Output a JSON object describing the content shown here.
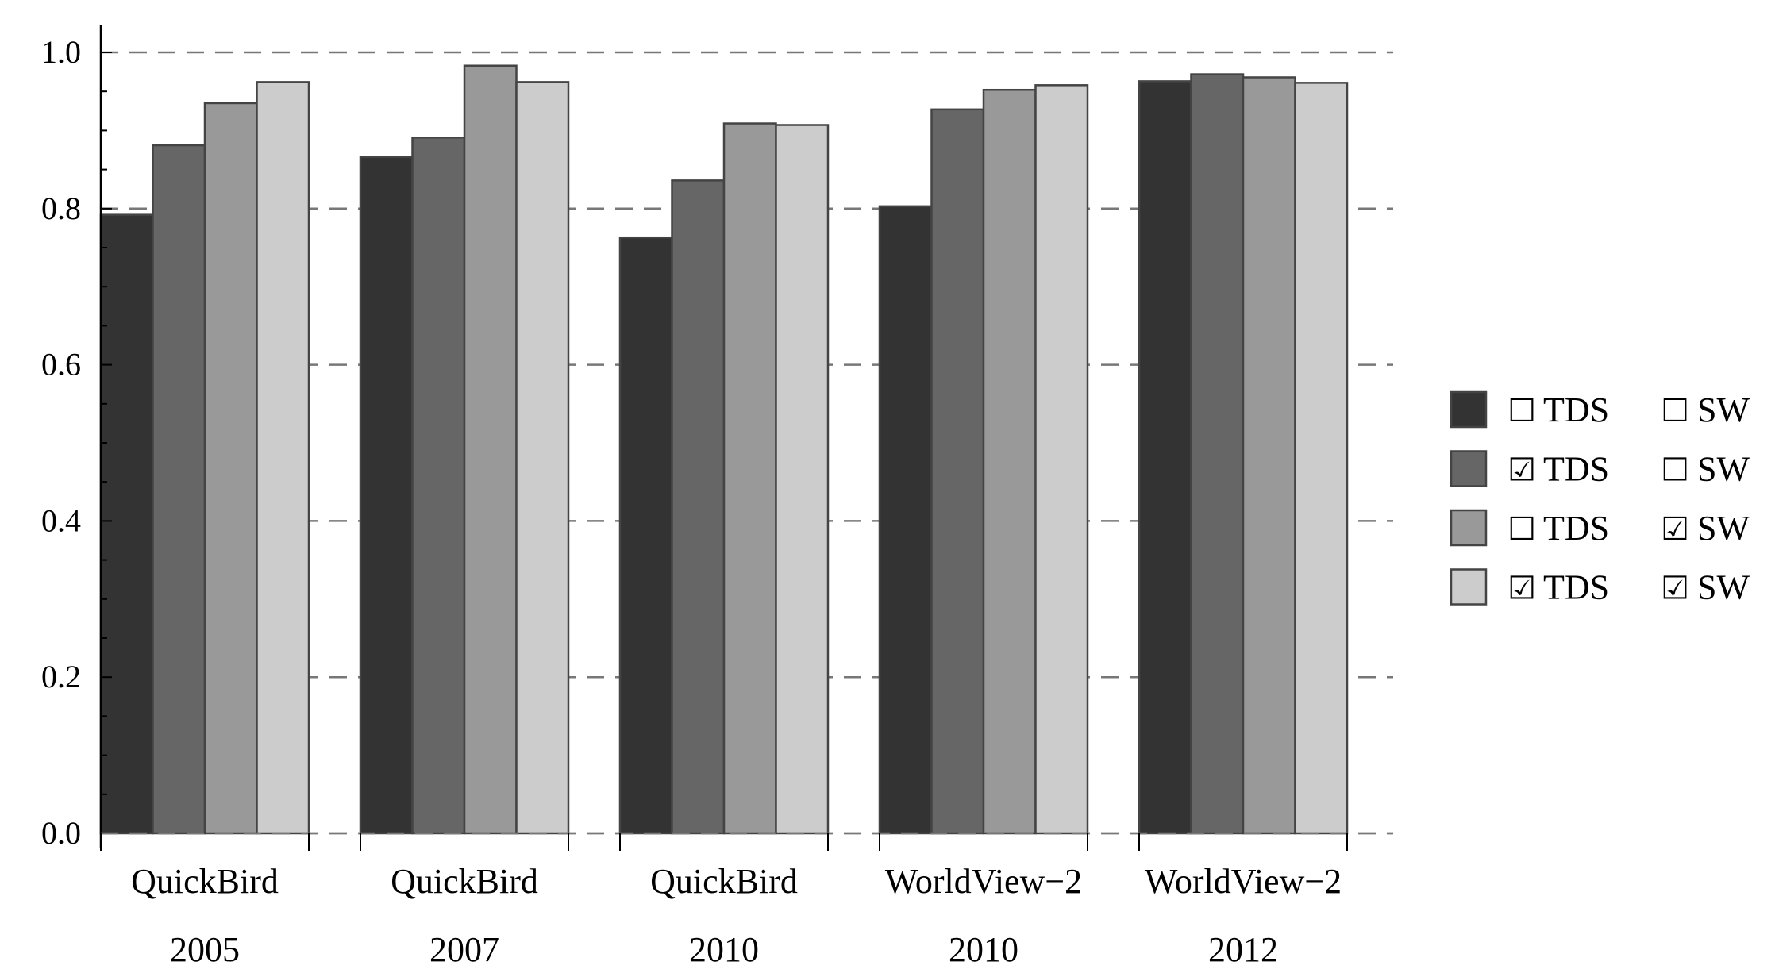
{
  "chart_data": {
    "type": "bar",
    "categories": [
      [
        "QuickBird",
        "2005"
      ],
      [
        "QuickBird",
        "2007"
      ],
      [
        "QuickBird",
        "2010"
      ],
      [
        "WorldView−2",
        "2010"
      ],
      [
        "WorldView−2",
        "2012"
      ]
    ],
    "series": [
      {
        "tds": "☐",
        "sw": "☐",
        "color": "#333333",
        "values": [
          0.792,
          0.866,
          0.763,
          0.803,
          0.963
        ]
      },
      {
        "tds": "☑",
        "sw": "☐",
        "color": "#666666",
        "values": [
          0.881,
          0.891,
          0.836,
          0.927,
          0.972
        ]
      },
      {
        "tds": "☐",
        "sw": "☑",
        "color": "#999999",
        "values": [
          0.935,
          0.983,
          0.909,
          0.952,
          0.968
        ]
      },
      {
        "tds": "☑",
        "sw": "☑",
        "color": "#cccccc",
        "values": [
          0.962,
          0.962,
          0.907,
          0.958,
          0.961
        ]
      }
    ],
    "legend": {
      "label_tds": "TDS",
      "label_sw": "SW",
      "position": "right"
    },
    "ylim": [
      0,
      1
    ],
    "yticks": [
      "0.0",
      "0.2",
      "0.4",
      "0.6",
      "0.8",
      "1.0"
    ],
    "grid": "horizontal dashed",
    "title": "",
    "xlabel": "",
    "ylabel": ""
  }
}
